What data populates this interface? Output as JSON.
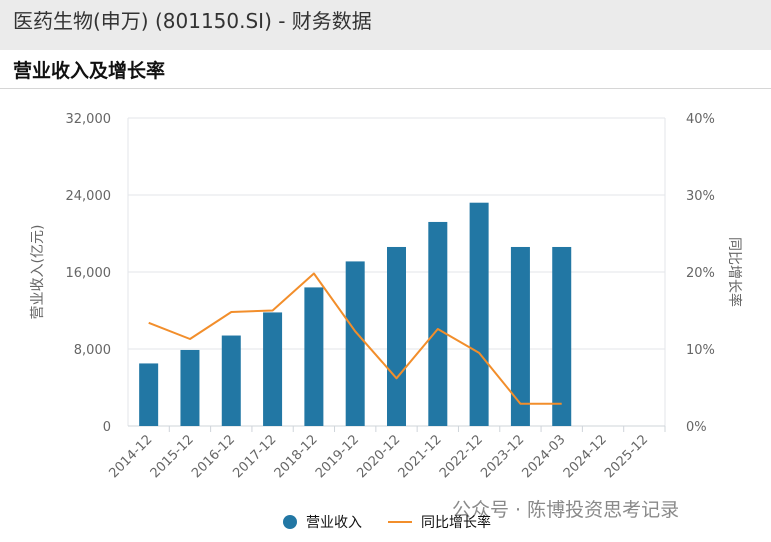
{
  "header": {
    "title": "医药生物(申万) (801150.SI) - 财务数据"
  },
  "section": {
    "title": "营业收入及增长率"
  },
  "watermark": {
    "text": "公众号 · 陈博投资思考记录"
  },
  "legend": {
    "items": [
      {
        "label": "营业收入",
        "kind": "bar"
      },
      {
        "label": "同比增长率",
        "kind": "line"
      }
    ]
  },
  "colors": {
    "bar": "#2277a4",
    "line": "#f28e2b",
    "grid": "#e3e6ea",
    "axis_text": "#666666"
  },
  "chart_data": {
    "type": "bar",
    "categories": [
      "2014-12",
      "2015-12",
      "2016-12",
      "2017-12",
      "2018-12",
      "2019-12",
      "2020-12",
      "2021-12",
      "2022-12",
      "2023-12",
      "2024-03",
      "2024-12",
      "2025-12"
    ],
    "y_left": {
      "label": "营业收入(亿元)",
      "ylim": [
        0,
        32000
      ],
      "ticks": [
        "0",
        "8,000",
        "16,000",
        "24,000",
        "32,000"
      ]
    },
    "y_right": {
      "label": "同比增长率",
      "ylim": [
        0,
        40
      ],
      "ticks": [
        "0%",
        "10%",
        "20%",
        "30%",
        "40%"
      ]
    },
    "series": [
      {
        "name": "营业收入",
        "type": "bar",
        "axis": "left",
        "values": [
          6500,
          7900,
          9400,
          11800,
          14400,
          17100,
          18600,
          21200,
          23200,
          18600,
          18600,
          null,
          null
        ]
      },
      {
        "name": "同比增长率",
        "type": "line",
        "axis": "right",
        "values": [
          13.4,
          11.3,
          14.8,
          15.0,
          19.8,
          12.3,
          6.2,
          12.6,
          9.5,
          2.9,
          2.9,
          null,
          null
        ]
      }
    ],
    "grid": true,
    "legend_position": "bottom"
  }
}
